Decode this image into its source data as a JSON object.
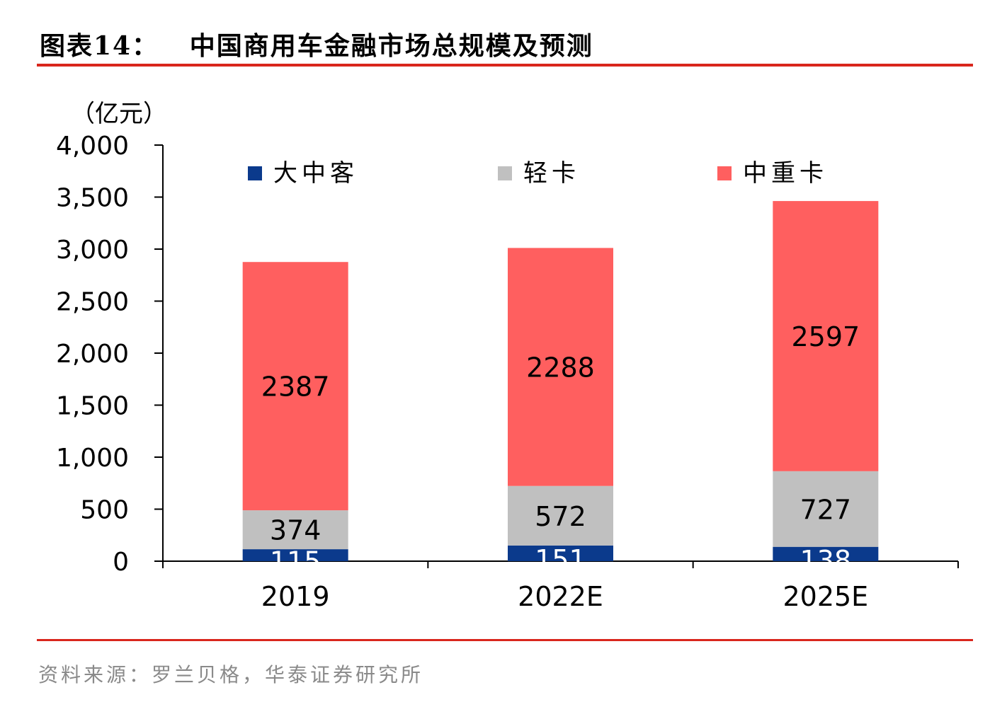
{
  "header": {
    "title": "图表14：   中国商用车金融市场总规模及预测"
  },
  "footer": {
    "source": "资料来源：罗兰贝格，华泰证券研究所"
  },
  "colors": {
    "accent_rule": "#d9261c",
    "axis": "#000000"
  },
  "chart_data": {
    "type": "bar",
    "stacked": true,
    "title": "",
    "unit_label": "（亿元）",
    "xlabel": "",
    "ylabel": "",
    "ylim": [
      0,
      4000
    ],
    "yticks": [
      0,
      500,
      1000,
      1500,
      2000,
      2500,
      3000,
      3500,
      4000
    ],
    "ytick_labels": [
      "0",
      "500",
      "1,000",
      "1,500",
      "2,000",
      "2,500",
      "3,000",
      "3,500",
      "4,000"
    ],
    "categories": [
      "2019",
      "2022E",
      "2025E"
    ],
    "grid": false,
    "legend_position": "top",
    "series": [
      {
        "name": "大中客",
        "values": [
          115,
          151,
          138
        ],
        "color": "#0b3a8c",
        "label_color": "#ffffff"
      },
      {
        "name": "轻卡",
        "values": [
          374,
          572,
          727
        ],
        "color": "#c0c0c0",
        "label_color": "#000000"
      },
      {
        "name": "中重卡",
        "values": [
          2387,
          2288,
          2597
        ],
        "color": "#ff5f5f",
        "label_color": "#000000"
      }
    ]
  }
}
